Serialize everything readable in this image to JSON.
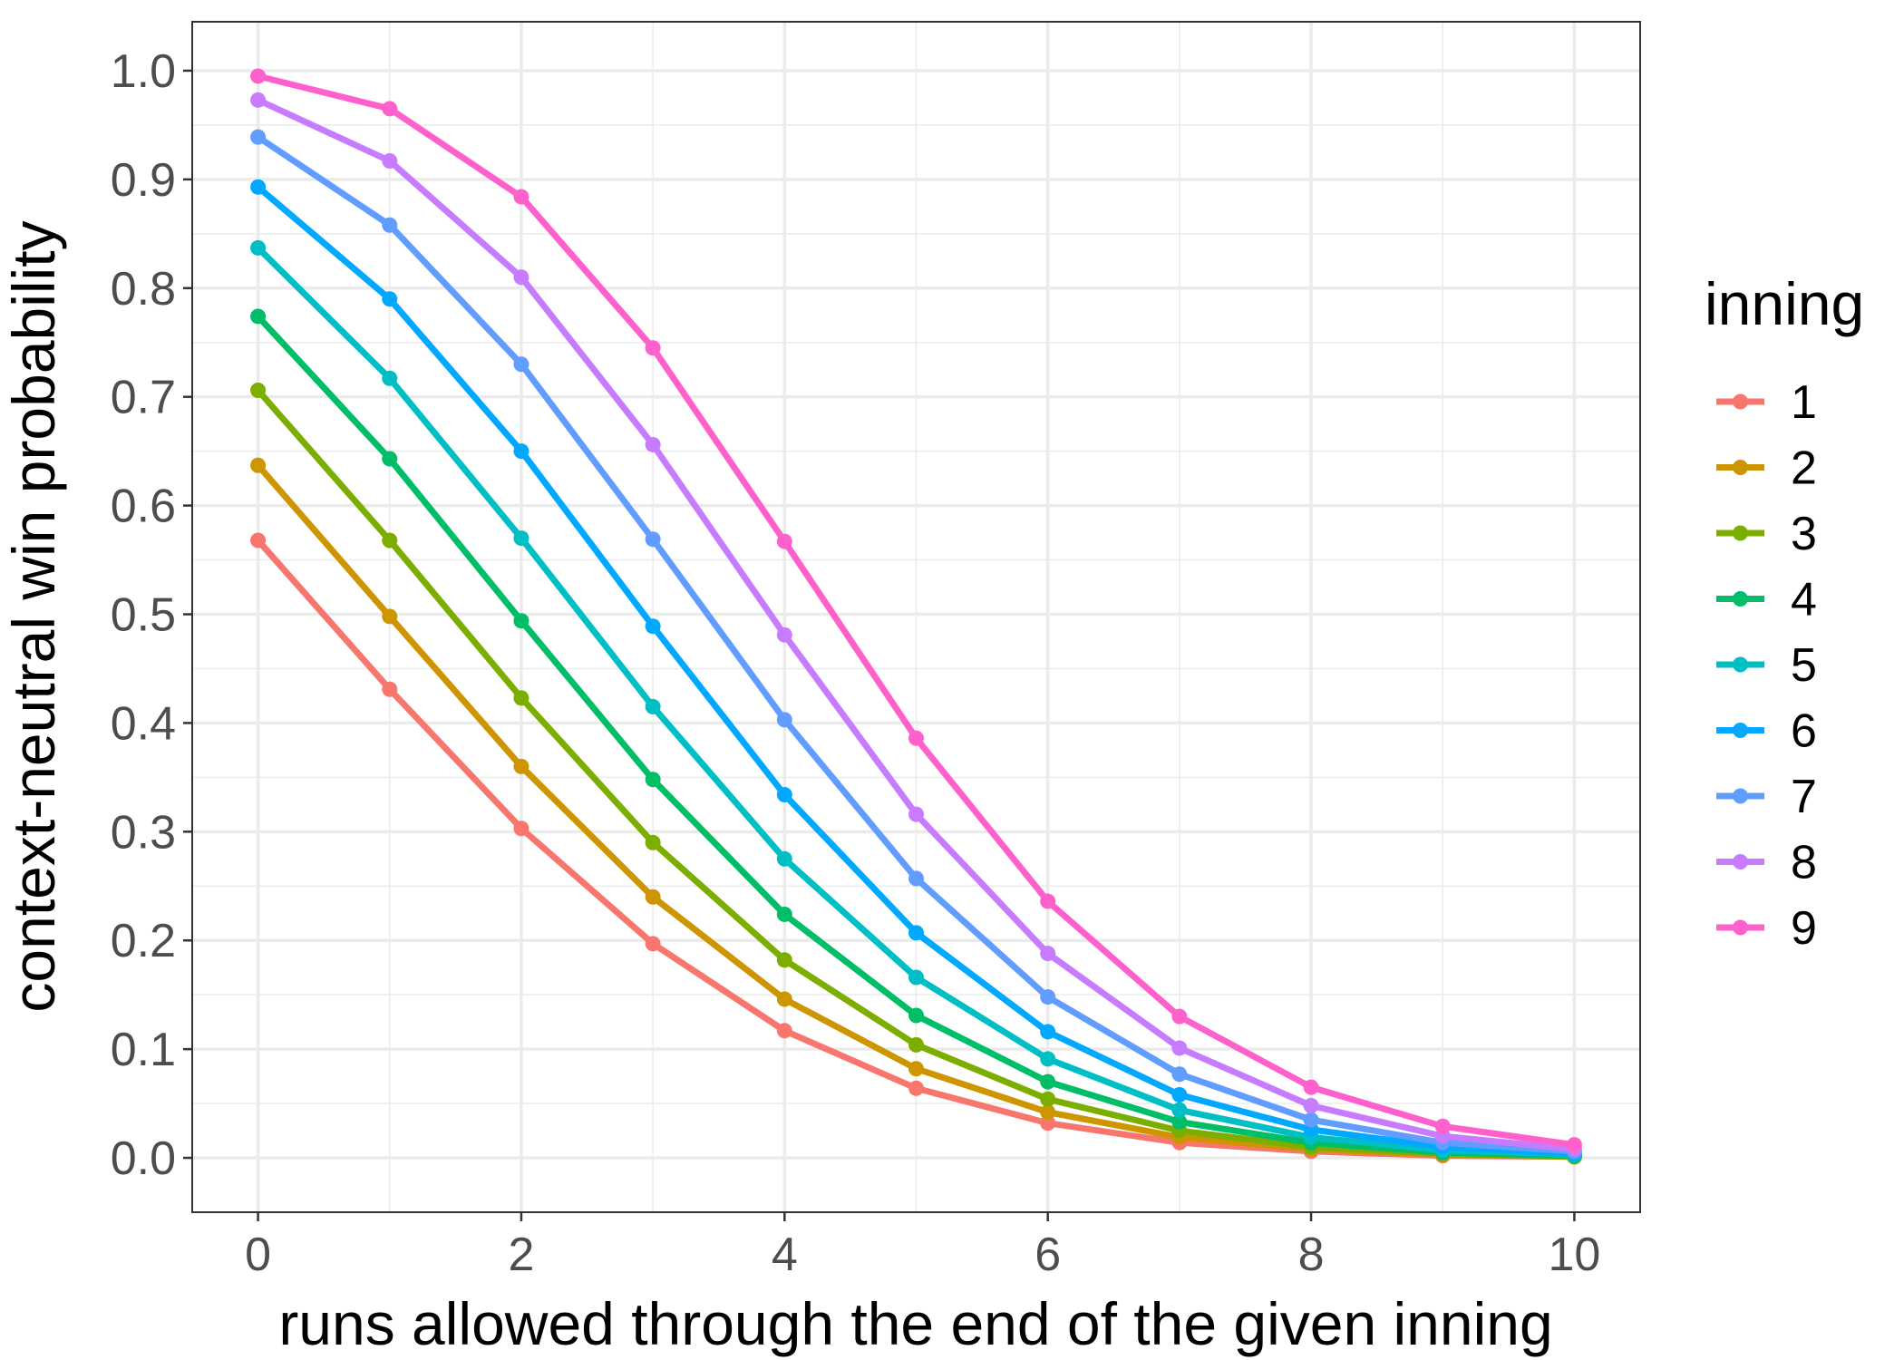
{
  "chart_data": {
    "type": "line",
    "xlabel": "runs allowed through the end of the given inning",
    "ylabel": "context-neutral win probability",
    "xlim": [
      -0.5,
      10.5
    ],
    "ylim": [
      -0.05,
      1.045
    ],
    "x_ticks": [
      0,
      2,
      4,
      6,
      8,
      10
    ],
    "x_tick_labels": [
      "0",
      "2",
      "4",
      "6",
      "8",
      "10"
    ],
    "y_ticks": [
      0.0,
      0.1,
      0.2,
      0.3,
      0.4,
      0.5,
      0.6,
      0.7,
      0.8,
      0.9,
      1.0
    ],
    "y_tick_labels": [
      "0.0",
      "0.1",
      "0.2",
      "0.3",
      "0.4",
      "0.5",
      "0.6",
      "0.7",
      "0.8",
      "0.9",
      "1.0"
    ],
    "grid": true,
    "legend": {
      "title": "inning",
      "placement": "right"
    },
    "x": [
      0,
      1,
      2,
      3,
      4,
      5,
      6,
      7,
      8,
      9,
      10
    ],
    "series": [
      {
        "name": "1",
        "color": "#F8766D",
        "values": [
          0.568,
          0.431,
          0.303,
          0.197,
          0.117,
          0.064,
          0.032,
          0.014,
          0.006,
          0.002,
          0.001
        ]
      },
      {
        "name": "2",
        "color": "#CD9600",
        "values": [
          0.637,
          0.498,
          0.36,
          0.24,
          0.146,
          0.082,
          0.042,
          0.019,
          0.008,
          0.003,
          0.001
        ]
      },
      {
        "name": "3",
        "color": "#7CAE00",
        "values": [
          0.706,
          0.568,
          0.423,
          0.29,
          0.182,
          0.104,
          0.054,
          0.025,
          0.01,
          0.004,
          0.001
        ]
      },
      {
        "name": "4",
        "color": "#00BE67",
        "values": [
          0.774,
          0.643,
          0.494,
          0.348,
          0.224,
          0.131,
          0.07,
          0.033,
          0.014,
          0.005,
          0.002
        ]
      },
      {
        "name": "5",
        "color": "#00BFC4",
        "values": [
          0.837,
          0.717,
          0.57,
          0.415,
          0.275,
          0.166,
          0.091,
          0.044,
          0.019,
          0.007,
          0.003
        ]
      },
      {
        "name": "6",
        "color": "#00A9FF",
        "values": [
          0.893,
          0.79,
          0.65,
          0.489,
          0.334,
          0.207,
          0.116,
          0.058,
          0.026,
          0.01,
          0.004
        ]
      },
      {
        "name": "7",
        "color": "#619CFF",
        "values": [
          0.939,
          0.858,
          0.73,
          0.569,
          0.403,
          0.257,
          0.148,
          0.077,
          0.035,
          0.014,
          0.006
        ]
      },
      {
        "name": "8",
        "color": "#C77CFF",
        "values": [
          0.973,
          0.917,
          0.81,
          0.656,
          0.481,
          0.316,
          0.188,
          0.101,
          0.048,
          0.02,
          0.008
        ]
      },
      {
        "name": "9",
        "color": "#FF61CC",
        "values": [
          0.995,
          0.965,
          0.884,
          0.745,
          0.567,
          0.386,
          0.236,
          0.13,
          0.065,
          0.029,
          0.012
        ]
      }
    ]
  }
}
